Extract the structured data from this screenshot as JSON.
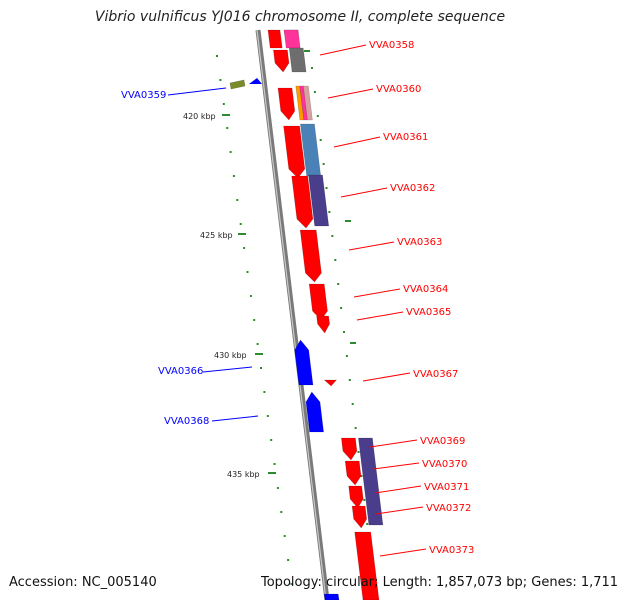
{
  "title": "Vibrio vulnificus YJ016 chromosome II, complete sequence",
  "footer": {
    "accession": "Accession: NC_005140",
    "summary": "Topology: circular; Length: 1,857,073 bp; Genes: 1,711"
  },
  "tick_labels": [
    "420 kbp",
    "425 kbp",
    "430 kbp",
    "435 kbp"
  ],
  "gene_labels": [
    {
      "text": "VVA0358",
      "strand": "forward"
    },
    {
      "text": "VVA0359",
      "strand": "reverse"
    },
    {
      "text": "VVA0360",
      "strand": "forward"
    },
    {
      "text": "VVA0361",
      "strand": "forward"
    },
    {
      "text": "VVA0362",
      "strand": "forward"
    },
    {
      "text": "VVA0363",
      "strand": "forward"
    },
    {
      "text": "VVA0364",
      "strand": "forward"
    },
    {
      "text": "VVA0365",
      "strand": "forward"
    },
    {
      "text": "VVA0366",
      "strand": "reverse"
    },
    {
      "text": "VVA0367",
      "strand": "forward"
    },
    {
      "text": "VVA0368",
      "strand": "reverse"
    },
    {
      "text": "VVA0369",
      "strand": "forward"
    },
    {
      "text": "VVA0370",
      "strand": "forward"
    },
    {
      "text": "VVA0371",
      "strand": "forward"
    },
    {
      "text": "VVA0372",
      "strand": "forward"
    },
    {
      "text": "VVA0373",
      "strand": "forward"
    }
  ],
  "colors": {
    "forward": "#ff0000",
    "reverse": "#0000ff",
    "backbone": "#808080",
    "tick": "#2e8b2e",
    "cog_teal": "#4a82b8",
    "cog_purple": "#4a3d8c",
    "cog_gray": "#6e6e6e",
    "cog_magenta": "#ff3399",
    "cog_orange": "#ff9900"
  }
}
